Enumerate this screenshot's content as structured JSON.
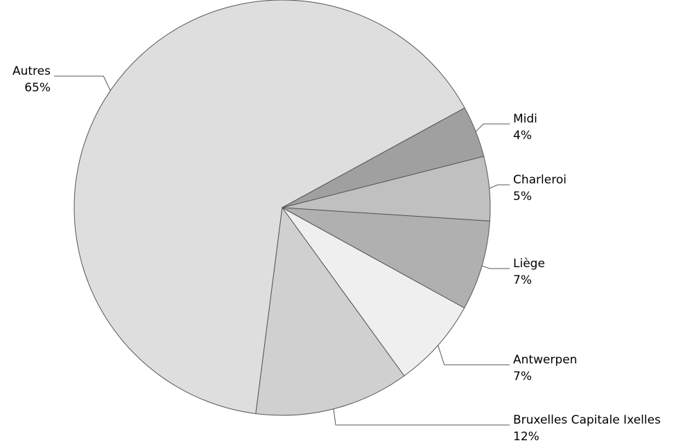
{
  "chart_data": {
    "type": "pie",
    "categories": [
      "Autres",
      "Midi",
      "Charleroi",
      "Liège",
      "Antwerpen",
      "Bruxelles Capitale Ixelles"
    ],
    "values": [
      65,
      4,
      5,
      7,
      7,
      12
    ],
    "value_labels": [
      "65%",
      "4%",
      "5%",
      "7%",
      "7%",
      "12%"
    ],
    "colors": [
      "#dedede",
      "#a0a0a0",
      "#c0c0c0",
      "#b0b0b0",
      "#efefef",
      "#d0d0d0"
    ]
  }
}
